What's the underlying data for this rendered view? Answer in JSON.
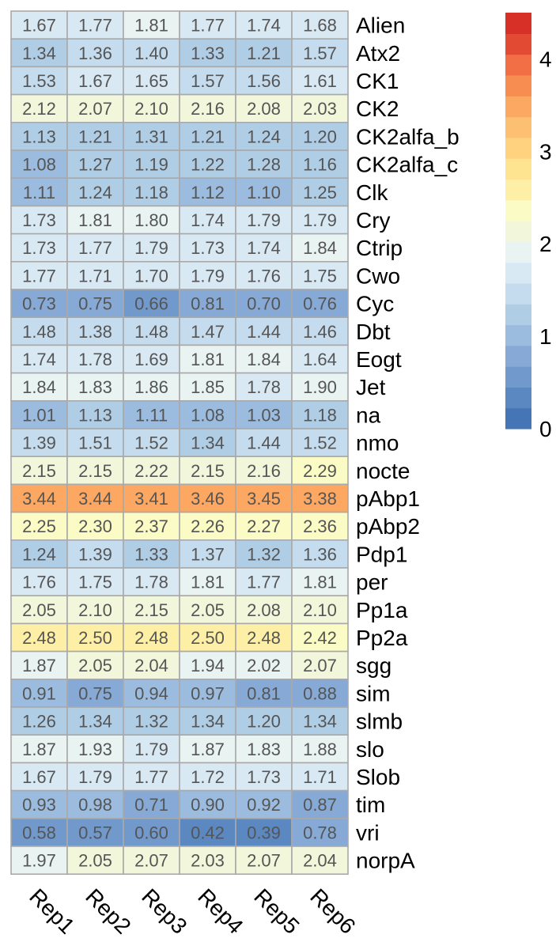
{
  "chart_data": {
    "type": "heatmap",
    "title": "",
    "xlabel": "",
    "ylabel": "",
    "columns": [
      "Rep1",
      "Rep2",
      "Rep3",
      "Rep4",
      "Rep5",
      "Rep6"
    ],
    "rows": [
      "Alien",
      "Atx2",
      "CK1",
      "CK2",
      "CK2alfa_b",
      "CK2alfa_c",
      "Clk",
      "Cry",
      "Ctrip",
      "Cwo",
      "Cyc",
      "Dbt",
      "Eogt",
      "Jet",
      "na",
      "nmo",
      "nocte",
      "pAbp1",
      "pAbp2",
      "Pdp1",
      "per",
      "Pp1a",
      "Pp2a",
      "sgg",
      "sim",
      "slmb",
      "slo",
      "Slob",
      "tim",
      "vri",
      "norpA"
    ],
    "values": [
      [
        "1.67",
        "1.77",
        "1.81",
        "1.77",
        "1.74",
        "1.68"
      ],
      [
        "1.34",
        "1.36",
        "1.40",
        "1.33",
        "1.21",
        "1.57"
      ],
      [
        "1.53",
        "1.67",
        "1.65",
        "1.57",
        "1.56",
        "1.61"
      ],
      [
        "2.12",
        "2.07",
        "2.10",
        "2.16",
        "2.08",
        "2.03"
      ],
      [
        "1.13",
        "1.21",
        "1.31",
        "1.21",
        "1.24",
        "1.20"
      ],
      [
        "1.08",
        "1.27",
        "1.19",
        "1.22",
        "1.28",
        "1.16"
      ],
      [
        "1.11",
        "1.24",
        "1.18",
        "1.12",
        "1.10",
        "1.25"
      ],
      [
        "1.73",
        "1.81",
        "1.80",
        "1.74",
        "1.79",
        "1.79"
      ],
      [
        "1.73",
        "1.77",
        "1.79",
        "1.73",
        "1.74",
        "1.84"
      ],
      [
        "1.77",
        "1.71",
        "1.70",
        "1.79",
        "1.76",
        "1.75"
      ],
      [
        "0.73",
        "0.75",
        "0.66",
        "0.81",
        "0.70",
        "0.76"
      ],
      [
        "1.48",
        "1.38",
        "1.48",
        "1.47",
        "1.44",
        "1.46"
      ],
      [
        "1.74",
        "1.78",
        "1.69",
        "1.81",
        "1.84",
        "1.64"
      ],
      [
        "1.84",
        "1.83",
        "1.86",
        "1.85",
        "1.78",
        "1.90"
      ],
      [
        "1.01",
        "1.13",
        "1.11",
        "1.08",
        "1.03",
        "1.18"
      ],
      [
        "1.39",
        "1.51",
        "1.52",
        "1.34",
        "1.44",
        "1.52"
      ],
      [
        "2.15",
        "2.15",
        "2.22",
        "2.15",
        "2.16",
        "2.29"
      ],
      [
        "3.44",
        "3.44",
        "3.41",
        "3.46",
        "3.45",
        "3.38"
      ],
      [
        "2.25",
        "2.30",
        "2.37",
        "2.26",
        "2.27",
        "2.36"
      ],
      [
        "1.24",
        "1.39",
        "1.33",
        "1.37",
        "1.32",
        "1.36"
      ],
      [
        "1.76",
        "1.75",
        "1.78",
        "1.81",
        "1.77",
        "1.81"
      ],
      [
        "2.05",
        "2.10",
        "2.15",
        "2.05",
        "2.08",
        "2.10"
      ],
      [
        "2.48",
        "2.50",
        "2.48",
        "2.50",
        "2.48",
        "2.42"
      ],
      [
        "1.87",
        "2.05",
        "2.04",
        "1.94",
        "2.02",
        "2.07"
      ],
      [
        "0.91",
        "0.75",
        "0.94",
        "0.97",
        "0.81",
        "0.88"
      ],
      [
        "1.26",
        "1.34",
        "1.32",
        "1.34",
        "1.20",
        "1.34"
      ],
      [
        "1.87",
        "1.93",
        "1.79",
        "1.87",
        "1.83",
        "1.88"
      ],
      [
        "1.67",
        "1.79",
        "1.77",
        "1.72",
        "1.73",
        "1.71"
      ],
      [
        "0.93",
        "0.98",
        "0.71",
        "0.90",
        "0.92",
        "0.87"
      ],
      [
        "0.58",
        "0.57",
        "0.60",
        "0.42",
        "0.39",
        "0.78"
      ],
      [
        "1.97",
        "2.05",
        "2.07",
        "2.03",
        "2.07",
        "2.04"
      ]
    ],
    "color_scale": {
      "min": 0,
      "max": 4.5,
      "colors": [
        "#4575b4",
        "#5b88c0",
        "#7199cc",
        "#86aad5",
        "#9bbcde",
        "#b0cde6",
        "#c5dcee",
        "#d9e9f4",
        "#e9f3f2",
        "#f2f7dc",
        "#fbfbc6",
        "#fdf0a6",
        "#fee391",
        "#fed27f",
        "#fdbf71",
        "#fca862",
        "#f88d52",
        "#f26e44",
        "#e34a33",
        "#d73027"
      ],
      "ticks": [
        "0",
        "1",
        "2",
        "3",
        "4"
      ],
      "tick_values": [
        0,
        1,
        2,
        3,
        4
      ]
    },
    "grid": true,
    "legend_position": "right"
  }
}
